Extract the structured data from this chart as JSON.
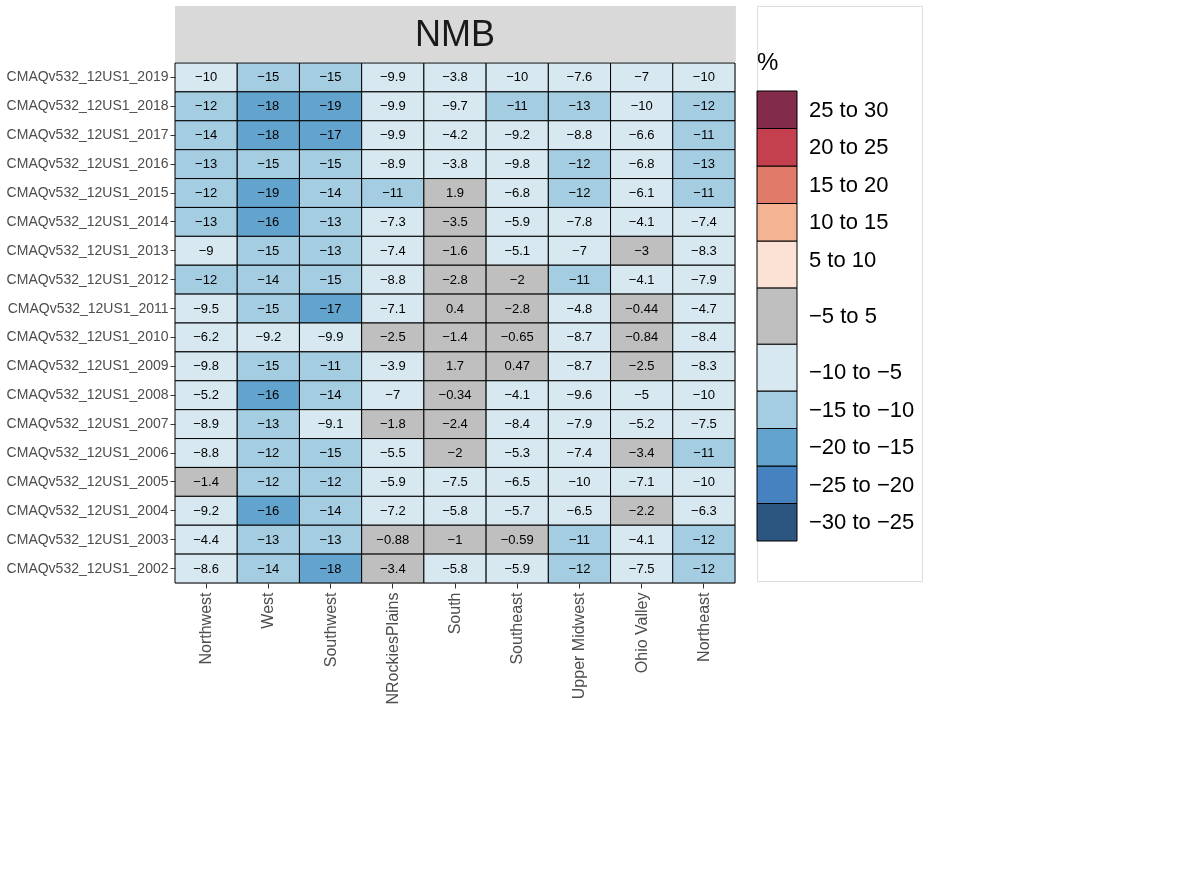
{
  "chart_data": {
    "type": "heatmap",
    "title": "NMB",
    "legend_title": "%",
    "data_labels": true,
    "categories": [
      "Northwest",
      "West",
      "Southwest",
      "NRockiesPlains",
      "South",
      "Southeast",
      "Upper Midwest",
      "Ohio Valley",
      "Northeast"
    ],
    "y_categories": [
      "CMAQv532_12US1_2019",
      "CMAQv532_12US1_2018",
      "CMAQv532_12US1_2017",
      "CMAQv532_12US1_2016",
      "CMAQv532_12US1_2015",
      "CMAQv532_12US1_2014",
      "CMAQv532_12US1_2013",
      "CMAQv532_12US1_2012",
      "CMAQv532_12US1_2011",
      "CMAQv532_12US1_2010",
      "CMAQv532_12US1_2009",
      "CMAQv532_12US1_2008",
      "CMAQv532_12US1_2007",
      "CMAQv532_12US1_2006",
      "CMAQv532_12US1_2005",
      "CMAQv532_12US1_2004",
      "CMAQv532_12US1_2003",
      "CMAQv532_12US1_2002"
    ],
    "cells": [
      [
        -10,
        -15,
        -15,
        -9.9,
        -3.8,
        -10,
        -7.6,
        -7,
        -10
      ],
      [
        -12,
        -18,
        -19,
        -9.9,
        -9.7,
        -11,
        -13,
        -10,
        -12
      ],
      [
        -14,
        -18,
        -17,
        -9.9,
        -4.2,
        -9.2,
        -8.8,
        -6.6,
        -11
      ],
      [
        -13,
        -15,
        -15,
        -8.9,
        -3.8,
        -9.8,
        -12,
        -6.8,
        -13
      ],
      [
        -12,
        -19,
        -14,
        -11,
        1.9,
        -6.8,
        -12,
        -6.1,
        -11
      ],
      [
        -13,
        -16,
        -13,
        -7.3,
        -3.5,
        -5.9,
        -7.8,
        -4.1,
        -7.4
      ],
      [
        -9,
        -15,
        -13,
        -7.4,
        -1.6,
        -5.1,
        -7,
        -3,
        -8.3
      ],
      [
        -12,
        -14,
        -15,
        -8.8,
        -2.8,
        -2,
        -11,
        -4.1,
        -7.9
      ],
      [
        -9.5,
        -15,
        -17,
        -7.1,
        0.4,
        -2.8,
        -4.8,
        -0.44,
        -4.7
      ],
      [
        -6.2,
        -9.2,
        -9.9,
        -2.5,
        -1.4,
        -0.65,
        -8.7,
        -0.84,
        -8.4
      ],
      [
        -9.8,
        -15,
        -11,
        -3.9,
        1.7,
        0.47,
        -8.7,
        -2.5,
        -8.3
      ],
      [
        -5.2,
        -16,
        -14,
        -7,
        -0.34,
        -4.1,
        -9.6,
        -5,
        -10
      ],
      [
        -8.9,
        -13,
        -9.1,
        -1.8,
        -2.4,
        -8.4,
        -7.9,
        -5.2,
        -7.5
      ],
      [
        -8.8,
        -12,
        -15,
        -5.5,
        -2,
        -5.3,
        -7.4,
        -3.4,
        -11
      ],
      [
        -1.4,
        -12,
        -12,
        -5.9,
        -7.5,
        -6.5,
        -10,
        -7.1,
        -10
      ],
      [
        -9.2,
        -16,
        -14,
        -7.2,
        -5.8,
        -5.7,
        -6.5,
        -2.2,
        -6.3
      ],
      [
        -4.4,
        -13,
        -13,
        -0.88,
        -1,
        -0.59,
        -11,
        -4.1,
        -12
      ],
      [
        -8.6,
        -14,
        -18,
        -3.4,
        -5.8,
        -5.9,
        -12,
        -7.5,
        -12
      ]
    ],
    "clim": [
      -30,
      30
    ],
    "cticks": [
      {
        "value": 27.5,
        "label": "25 to 30"
      },
      {
        "value": 22.5,
        "label": "20 to 25"
      },
      {
        "value": 17.5,
        "label": "15 to 20"
      },
      {
        "value": 12.5,
        "label": "10 to 15"
      },
      {
        "value": 7.5,
        "label": "5 to 10"
      },
      {
        "value": 0,
        "label": "−5 to 5"
      },
      {
        "value": -7.5,
        "label": "−10 to −5"
      },
      {
        "value": -12.5,
        "label": "−15 to −10"
      },
      {
        "value": -17.5,
        "label": "−20 to −15"
      },
      {
        "value": -22.5,
        "label": "−25 to −20"
      },
      {
        "value": -27.5,
        "label": "−30 to −25"
      }
    ],
    "colors": [
      "#832b4a",
      "#c4404f",
      "#e07b6a",
      "#f4b494",
      "#fce2d4",
      "#bfbfbf",
      "#d7e8f0",
      "#a5cde2",
      "#63a4ce",
      "#4682c0",
      "#2c5580"
    ]
  }
}
